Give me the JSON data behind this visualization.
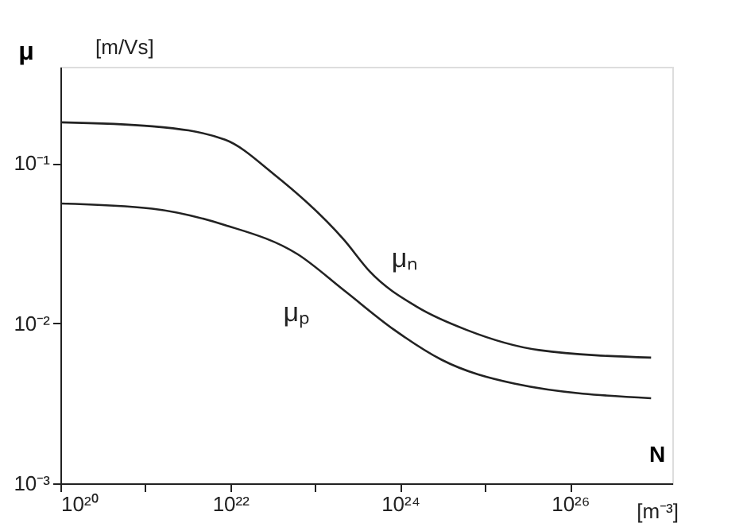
{
  "chart_data": {
    "type": "line",
    "xlabel": "N",
    "ylabel": "μ",
    "annotations": [
      "[m/Vs]",
      "[m⁻³]"
    ],
    "log": "xy",
    "grid": false,
    "legend": false,
    "marker": "none",
    "line_style": "solid",
    "xlim": [
      1e+20,
      1.6e+27
    ],
    "ylim": [
      0.001,
      0.4
    ],
    "xticks": [
      {
        "value": 1e+20,
        "label": "10²⁰"
      },
      {
        "value": 1e+21,
        "label": null
      },
      {
        "value": 1e+22,
        "label": "10²²"
      },
      {
        "value": 1e+23,
        "label": null
      },
      {
        "value": 1e+24,
        "label": "10²⁴"
      },
      {
        "value": 1e+25,
        "label": null
      },
      {
        "value": 1e+26,
        "label": "10²⁶"
      }
    ],
    "yticks": [
      {
        "value": 0.001,
        "label": "10⁻³"
      },
      {
        "value": 0.01,
        "label": "10⁻²"
      },
      {
        "value": 0.1,
        "label": "10⁻¹"
      }
    ],
    "series": [
      {
        "name": "μₙ",
        "color": "#222222",
        "x": [
          1e+20,
          1.2e+21,
          8.7e+21,
          3.2e+22,
          2.2e+23,
          4.4e+23,
          1.6e+24,
          6e+24,
          4.3e+25,
          9e+26
        ],
        "values": [
          0.18,
          0.17,
          0.14,
          0.086,
          0.033,
          0.021,
          0.0126,
          0.0091,
          0.0068,
          0.0061
        ]
      },
      {
        "name": "μₚ",
        "color": "#222222",
        "x": [
          1e+20,
          1.2e+21,
          8.7e+21,
          6.2e+22,
          2.2e+23,
          8.5e+23,
          3.1e+24,
          2.2e+25,
          9e+26
        ],
        "values": [
          0.056,
          0.052,
          0.041,
          0.027,
          0.016,
          0.0091,
          0.0059,
          0.0042,
          0.0034
        ]
      }
    ]
  }
}
